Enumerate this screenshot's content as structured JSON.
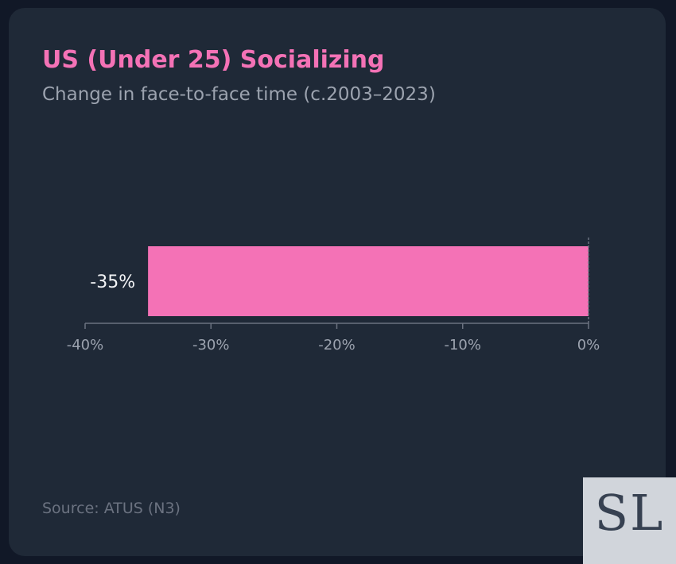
{
  "card": {
    "title": "US (Under 25) Socializing",
    "subtitle": "Change in face-to-face time (c.2003–2023)",
    "source": "Source: ATUS (N3)"
  },
  "logo": {
    "text": "SL"
  },
  "colors": {
    "background": "#111827",
    "card": "#1f2937",
    "accent": "#f472b6",
    "muted_text": "#9ca3af",
    "axis": "#6b7280",
    "value_label": "#f3f4f6"
  },
  "chart_data": {
    "type": "bar",
    "orientation": "horizontal",
    "title": "US (Under 25) Socializing",
    "subtitle": "Change in face-to-face time (c.2003–2023)",
    "categories": [
      ""
    ],
    "values": [
      -35
    ],
    "value_labels": [
      "-35%"
    ],
    "xlim": [
      -40,
      0
    ],
    "xticks": [
      -40,
      -30,
      -20,
      -10,
      0
    ],
    "xtick_labels": [
      "-40%",
      "-30%",
      "-20%",
      "-10%",
      "0%"
    ],
    "bar_color": "#f472b6",
    "grid": false,
    "legend": "none"
  }
}
